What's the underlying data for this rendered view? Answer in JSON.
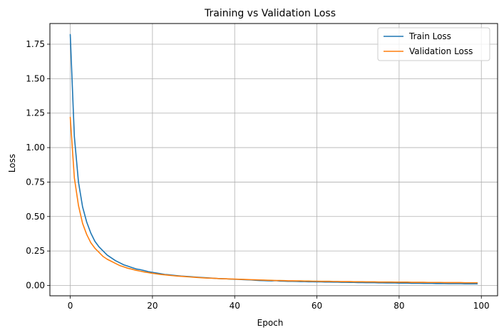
{
  "chart_data": {
    "type": "line",
    "title": "Training vs Validation Loss",
    "xlabel": "Epoch",
    "ylabel": "Loss",
    "xlim": [
      -4.95,
      103.95
    ],
    "ylim": [
      -0.075,
      1.9
    ],
    "xticks": [
      0,
      20,
      40,
      60,
      80,
      100
    ],
    "yticks": [
      0.0,
      0.25,
      0.5,
      0.75,
      1.0,
      1.25,
      1.5,
      1.75
    ],
    "xtick_labels": [
      "0",
      "20",
      "40",
      "60",
      "80",
      "100"
    ],
    "ytick_labels": [
      "0.00",
      "0.25",
      "0.50",
      "0.75",
      "1.00",
      "1.25",
      "1.50",
      "1.75"
    ],
    "grid": true,
    "legend_position": "top-right",
    "series": [
      {
        "name": "Train Loss",
        "color": "#1f77b4",
        "x": [
          0,
          1,
          2,
          3,
          4,
          5,
          6,
          7,
          8,
          9,
          10,
          11,
          12,
          13,
          14,
          15,
          16,
          17,
          18,
          19,
          20,
          21,
          22,
          23,
          24,
          25,
          26,
          27,
          28,
          29,
          30,
          31,
          32,
          33,
          34,
          35,
          36,
          37,
          38,
          39,
          40,
          41,
          42,
          43,
          44,
          45,
          46,
          47,
          48,
          49,
          50,
          51,
          52,
          53,
          54,
          55,
          56,
          57,
          58,
          59,
          60,
          61,
          62,
          63,
          64,
          65,
          66,
          67,
          68,
          69,
          70,
          71,
          72,
          73,
          74,
          75,
          76,
          77,
          78,
          79,
          80,
          81,
          82,
          83,
          84,
          85,
          86,
          87,
          88,
          89,
          90,
          91,
          92,
          93,
          94,
          95,
          96,
          97,
          98,
          99
        ],
        "y": [
          1.82,
          1.08,
          0.75,
          0.57,
          0.46,
          0.38,
          0.32,
          0.28,
          0.25,
          0.22,
          0.2,
          0.18,
          0.165,
          0.15,
          0.14,
          0.13,
          0.12,
          0.115,
          0.108,
          0.1,
          0.095,
          0.09,
          0.085,
          0.08,
          0.077,
          0.074,
          0.071,
          0.068,
          0.066,
          0.064,
          0.062,
          0.06,
          0.058,
          0.056,
          0.054,
          0.052,
          0.05,
          0.049,
          0.048,
          0.046,
          0.045,
          0.044,
          0.042,
          0.041,
          0.04,
          0.038,
          0.036,
          0.035,
          0.034,
          0.033,
          0.035,
          0.032,
          0.031,
          0.03,
          0.03,
          0.029,
          0.028,
          0.028,
          0.027,
          0.027,
          0.026,
          0.026,
          0.025,
          0.025,
          0.024,
          0.024,
          0.023,
          0.023,
          0.022,
          0.022,
          0.021,
          0.021,
          0.02,
          0.02,
          0.02,
          0.019,
          0.019,
          0.018,
          0.018,
          0.018,
          0.017,
          0.017,
          0.017,
          0.016,
          0.016,
          0.016,
          0.015,
          0.015,
          0.015,
          0.014,
          0.014,
          0.014,
          0.013,
          0.013,
          0.013,
          0.013,
          0.012,
          0.012,
          0.012,
          0.012
        ]
      },
      {
        "name": "Validation Loss",
        "color": "#ff7f0e",
        "x": [
          0,
          1,
          2,
          3,
          4,
          5,
          6,
          7,
          8,
          9,
          10,
          11,
          12,
          13,
          14,
          15,
          16,
          17,
          18,
          19,
          20,
          21,
          22,
          23,
          24,
          25,
          26,
          27,
          28,
          29,
          30,
          31,
          32,
          33,
          34,
          35,
          36,
          37,
          38,
          39,
          40,
          41,
          42,
          43,
          44,
          45,
          46,
          47,
          48,
          49,
          50,
          51,
          52,
          53,
          54,
          55,
          56,
          57,
          58,
          59,
          60,
          61,
          62,
          63,
          64,
          65,
          66,
          67,
          68,
          69,
          70,
          71,
          72,
          73,
          74,
          75,
          76,
          77,
          78,
          79,
          80,
          81,
          82,
          83,
          84,
          85,
          86,
          87,
          88,
          89,
          90,
          91,
          92,
          93,
          94,
          95,
          96,
          97,
          98,
          99
        ],
        "y": [
          1.22,
          0.78,
          0.58,
          0.45,
          0.37,
          0.31,
          0.27,
          0.24,
          0.21,
          0.19,
          0.175,
          0.16,
          0.145,
          0.135,
          0.125,
          0.118,
          0.11,
          0.104,
          0.098,
          0.093,
          0.088,
          0.084,
          0.08,
          0.077,
          0.074,
          0.071,
          0.068,
          0.066,
          0.064,
          0.062,
          0.06,
          0.058,
          0.056,
          0.054,
          0.053,
          0.052,
          0.05,
          0.049,
          0.048,
          0.047,
          0.046,
          0.045,
          0.044,
          0.043,
          0.042,
          0.041,
          0.04,
          0.039,
          0.038,
          0.037,
          0.036,
          0.036,
          0.035,
          0.034,
          0.034,
          0.033,
          0.033,
          0.032,
          0.032,
          0.031,
          0.031,
          0.03,
          0.03,
          0.03,
          0.029,
          0.029,
          0.028,
          0.028,
          0.028,
          0.027,
          0.027,
          0.027,
          0.026,
          0.026,
          0.026,
          0.025,
          0.025,
          0.025,
          0.025,
          0.024,
          0.024,
          0.024,
          0.024,
          0.023,
          0.023,
          0.023,
          0.023,
          0.022,
          0.022,
          0.022,
          0.022,
          0.021,
          0.021,
          0.021,
          0.021,
          0.021,
          0.02,
          0.02,
          0.02,
          0.02
        ]
      }
    ]
  }
}
